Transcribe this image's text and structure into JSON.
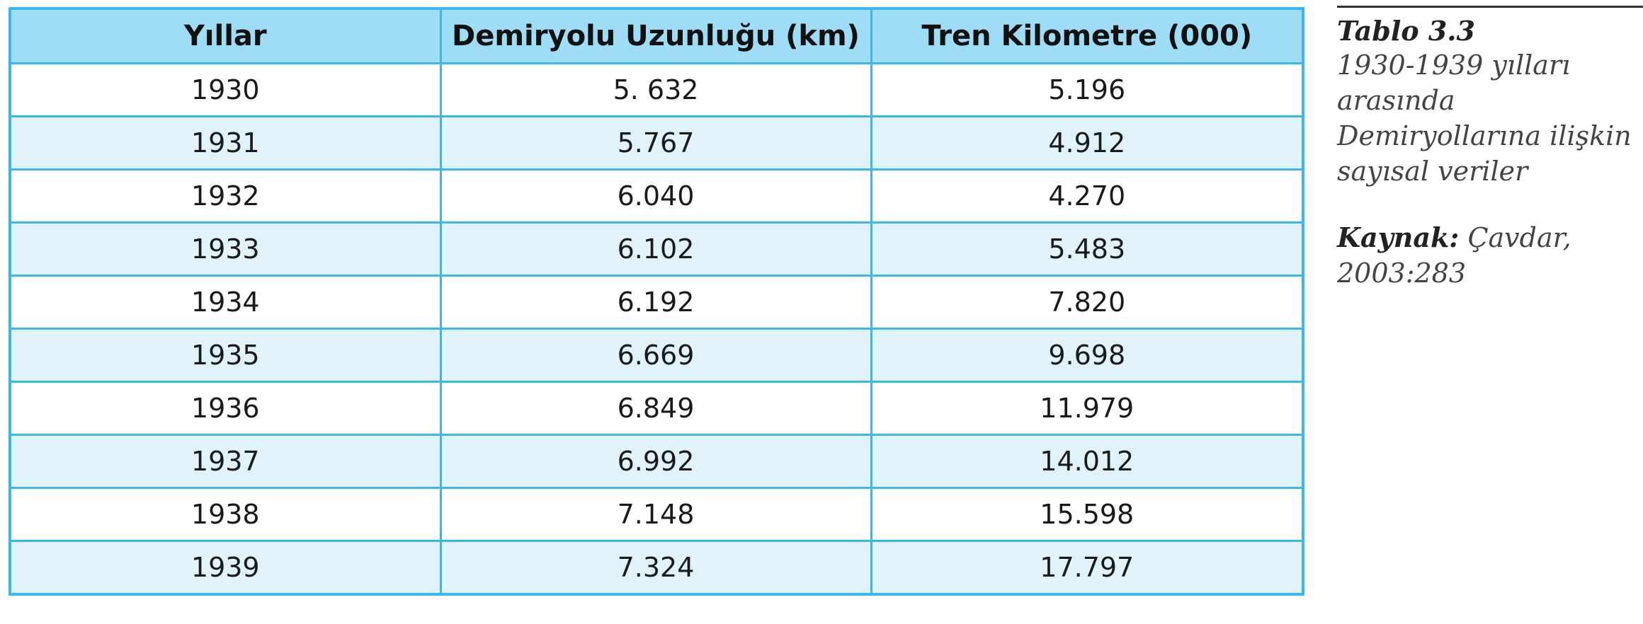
{
  "table": {
    "headers": [
      "Yıllar",
      "Demiryolu Uzunluğu (km)",
      "Tren Kilometre (000)"
    ],
    "rows": [
      [
        "1930",
        "5. 632",
        "5.196"
      ],
      [
        "1931",
        "5.767",
        "4.912"
      ],
      [
        "1932",
        "6.040",
        "4.270"
      ],
      [
        "1933",
        "6.102",
        "5.483"
      ],
      [
        "1934",
        "6.192",
        "7.820"
      ],
      [
        "1935",
        "6.669",
        "9.698"
      ],
      [
        "1936",
        "6.849",
        "11.979"
      ],
      [
        "1937",
        "6.992",
        "14.012"
      ],
      [
        "1938",
        "7.148",
        "15.598"
      ],
      [
        "1939",
        "7.324",
        "17.797"
      ]
    ]
  },
  "caption": {
    "title": "Tablo 3.3",
    "description": "1930-1939 yılları arasında Demiryollarına ilişkin sayısal veriler",
    "source_label": "Kaynak:",
    "source_value": "Çavdar, 2003:283"
  },
  "colors": {
    "border": "#3cb8e8",
    "header_bg": "#9fdcf5",
    "stripe_bg": "#e0f3fb"
  }
}
